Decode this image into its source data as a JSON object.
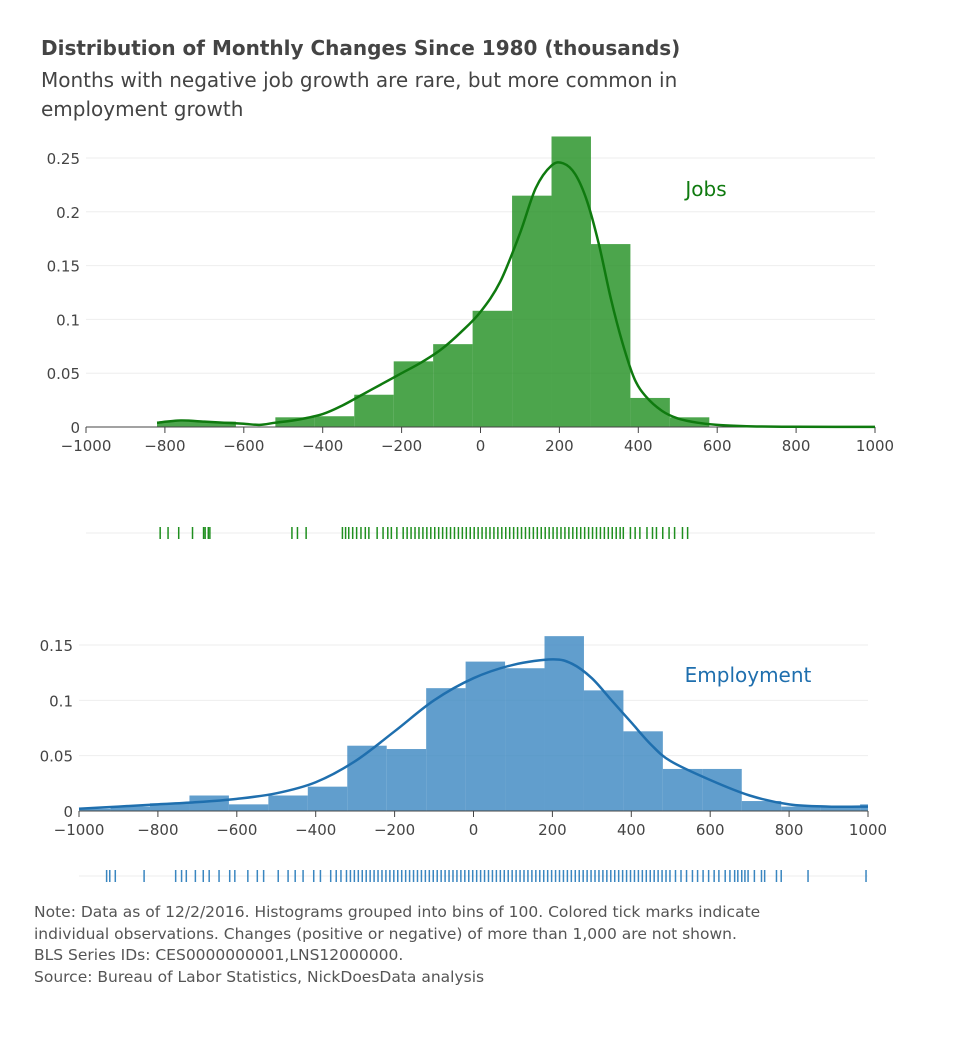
{
  "header": {
    "title": "Distribution of Monthly Changes Since 1980 (thousands)",
    "subtitle": "Months with negative job growth are rare, but more common in employment growth"
  },
  "notes": [
    "Note: Data as of 12/2/2016. Histograms grouped into bins of 100. Colored tick marks indicate",
    "individual observations. Changes (positive or negative) of more than 1,000 are not shown.",
    "BLS Series IDs: CES0000000001,LNS12000000.",
    "Source: Bureau of Labor Statistics, NickDoesData analysis"
  ],
  "colors": {
    "jobs": "#1f8f1f",
    "jobs_line": "#0f7a0f",
    "employment": "#3a86c0",
    "employment_line": "#1f6fae",
    "grid": "#eeeeee",
    "axis_text": "#444444"
  },
  "chart_data": [
    {
      "type": "histogram",
      "name": "Jobs",
      "label": "Jobs",
      "xlim": [
        -1000,
        1000
      ],
      "ylim": [
        0,
        0.25
      ],
      "x_ticks": [
        -1000,
        -800,
        -600,
        -400,
        -200,
        0,
        200,
        400,
        600,
        800,
        1000
      ],
      "y_ticks": [
        0,
        0.05,
        0.1,
        0.15,
        0.2,
        0.25
      ],
      "y_tick_labels": [
        "0",
        "0.05",
        "0.1",
        "0.15",
        "0.2",
        "0.25"
      ],
      "bins": [
        {
          "start": -820,
          "end": -620,
          "value": 0.005
        },
        {
          "start": -520,
          "end": -420,
          "value": 0.009
        },
        {
          "start": -420,
          "end": -320,
          "value": 0.01
        },
        {
          "start": -320,
          "end": -220,
          "value": 0.03
        },
        {
          "start": -220,
          "end": -120,
          "value": 0.061
        },
        {
          "start": -120,
          "end": -20,
          "value": 0.077
        },
        {
          "start": -20,
          "end": 80,
          "value": 0.108
        },
        {
          "start": 80,
          "end": 180,
          "value": 0.215
        },
        {
          "start": 180,
          "end": 280,
          "value": 0.27
        },
        {
          "start": 280,
          "end": 380,
          "value": 0.17
        },
        {
          "start": 380,
          "end": 480,
          "value": 0.027
        },
        {
          "start": 480,
          "end": 580,
          "value": 0.009
        }
      ],
      "density_curve": {
        "x": [
          -820,
          -760,
          -700,
          -650,
          -600,
          -560,
          -520,
          -460,
          -400,
          -350,
          -300,
          -250,
          -200,
          -150,
          -100,
          -50,
          0,
          50,
          100,
          140,
          180,
          210,
          240,
          270,
          300,
          330,
          360,
          390,
          420,
          460,
          500,
          550,
          600,
          650,
          700,
          800,
          900,
          1000
        ],
        "y": [
          0.004,
          0.006,
          0.005,
          0.004,
          0.003,
          0.002,
          0.004,
          0.007,
          0.012,
          0.02,
          0.03,
          0.04,
          0.05,
          0.06,
          0.072,
          0.088,
          0.107,
          0.135,
          0.18,
          0.222,
          0.243,
          0.245,
          0.235,
          0.21,
          0.17,
          0.12,
          0.078,
          0.045,
          0.028,
          0.015,
          0.008,
          0.004,
          0.002,
          0.001,
          0.0005,
          0.0002,
          0.0001,
          0.0001
        ]
      },
      "rug": [
        -812,
        -792,
        -765,
        -730,
        -702,
        -698,
        -690,
        -686,
        -478,
        -464,
        -442,
        -350,
        -342,
        -334,
        -324,
        -314,
        -303,
        -292,
        -283,
        -262,
        -247,
        -235,
        -226,
        -212,
        -196,
        -186,
        -176,
        -166,
        -156,
        -146,
        -136,
        -126,
        -116,
        -106,
        -96,
        -86,
        -76,
        -66,
        -56,
        -46,
        -36,
        -26,
        -16,
        -6,
        4,
        14,
        24,
        34,
        44,
        54,
        64,
        74,
        84,
        94,
        104,
        114,
        124,
        134,
        144,
        154,
        164,
        174,
        184,
        194,
        204,
        214,
        224,
        234,
        244,
        254,
        264,
        274,
        284,
        294,
        304,
        314,
        324,
        334,
        344,
        354,
        362,
        380,
        392,
        404,
        422,
        436,
        446,
        462,
        478,
        492,
        512,
        525
      ]
    },
    {
      "type": "histogram",
      "name": "Employment",
      "label": "Employment",
      "xlim": [
        -1000,
        1000
      ],
      "ylim": [
        0,
        0.15
      ],
      "x_ticks": [
        -1000,
        -800,
        -600,
        -400,
        -200,
        0,
        200,
        400,
        600,
        800,
        1000
      ],
      "y_ticks": [
        0,
        0.05,
        0.1,
        0.15
      ],
      "y_tick_labels": [
        "0",
        "0.05",
        "0.1",
        "0.15"
      ],
      "bins": [
        {
          "start": -1000,
          "end": -920,
          "value": 0.002
        },
        {
          "start": -920,
          "end": -820,
          "value": 0.004
        },
        {
          "start": -820,
          "end": -720,
          "value": 0.007
        },
        {
          "start": -720,
          "end": -620,
          "value": 0.014
        },
        {
          "start": -620,
          "end": -520,
          "value": 0.006
        },
        {
          "start": -520,
          "end": -420,
          "value": 0.014
        },
        {
          "start": -420,
          "end": -320,
          "value": 0.022
        },
        {
          "start": -320,
          "end": -220,
          "value": 0.059
        },
        {
          "start": -220,
          "end": -120,
          "value": 0.056
        },
        {
          "start": -120,
          "end": -20,
          "value": 0.111
        },
        {
          "start": -20,
          "end": 80,
          "value": 0.135
        },
        {
          "start": 80,
          "end": 180,
          "value": 0.129
        },
        {
          "start": 180,
          "end": 280,
          "value": 0.158
        },
        {
          "start": 280,
          "end": 380,
          "value": 0.109
        },
        {
          "start": 380,
          "end": 480,
          "value": 0.072
        },
        {
          "start": 480,
          "end": 580,
          "value": 0.038
        },
        {
          "start": 580,
          "end": 680,
          "value": 0.038
        },
        {
          "start": 680,
          "end": 780,
          "value": 0.009
        },
        {
          "start": 780,
          "end": 880,
          "value": 0.004
        },
        {
          "start": 880,
          "end": 980,
          "value": 0.004
        },
        {
          "start": 980,
          "end": 1000,
          "value": 0.006
        }
      ],
      "density_curve": {
        "x": [
          -1000,
          -900,
          -800,
          -700,
          -600,
          -500,
          -400,
          -300,
          -200,
          -100,
          0,
          100,
          200,
          250,
          300,
          350,
          400,
          450,
          500,
          600,
          700,
          800,
          900,
          1000
        ],
        "y": [
          0.002,
          0.004,
          0.006,
          0.008,
          0.011,
          0.016,
          0.026,
          0.045,
          0.072,
          0.1,
          0.12,
          0.132,
          0.137,
          0.133,
          0.12,
          0.1,
          0.08,
          0.06,
          0.045,
          0.028,
          0.014,
          0.006,
          0.004,
          0.004
        ]
      },
      "rug": [
        -930,
        -922,
        -908,
        -835,
        -755,
        -740,
        -728,
        -705,
        -685,
        -670,
        -645,
        -618,
        -605,
        -572,
        -548,
        -532,
        -495,
        -470,
        -452,
        -432,
        -405,
        -388,
        -362,
        -348,
        -336,
        -322,
        -312,
        -302,
        -292,
        -282,
        -272,
        -262,
        -252,
        -242,
        -232,
        -222,
        -212,
        -202,
        -192,
        -182,
        -172,
        -162,
        -152,
        -142,
        -132,
        -122,
        -112,
        -102,
        -92,
        -82,
        -72,
        -62,
        -52,
        -42,
        -32,
        -22,
        -12,
        -2,
        8,
        18,
        28,
        38,
        48,
        58,
        68,
        78,
        88,
        98,
        108,
        118,
        128,
        138,
        148,
        158,
        168,
        178,
        188,
        198,
        208,
        218,
        228,
        238,
        248,
        258,
        268,
        278,
        288,
        298,
        308,
        318,
        328,
        338,
        348,
        358,
        368,
        378,
        388,
        398,
        408,
        418,
        428,
        438,
        448,
        458,
        468,
        478,
        488,
        498,
        512,
        526,
        540,
        555,
        568,
        582,
        596,
        610,
        622,
        638,
        650,
        662,
        670,
        680,
        688,
        696,
        712,
        730,
        738,
        768,
        780,
        848,
        995
      ]
    }
  ]
}
